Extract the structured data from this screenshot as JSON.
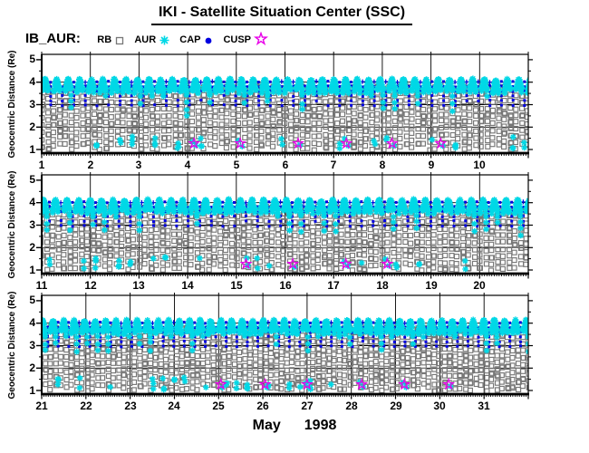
{
  "window_title": "IKI - Satellite Situation Center (SSC)",
  "chart_data": {
    "type": "scatter",
    "title": "IKI - Satellite Situation Center (SSC)",
    "dataset_label": "IB_AUR:",
    "ylabel": "Geocentric Distance (Re)",
    "month_label": "May",
    "year_label": "1998",
    "ylim": [
      1,
      5
    ],
    "yticks": [
      "1",
      "2",
      "3",
      "4",
      "5"
    ],
    "y_minor_ticks": [
      1.5,
      2.5,
      3.5,
      4.5
    ],
    "y_gridlines": [
      2,
      3,
      4
    ],
    "x_minor_tick_step_days": 0.05,
    "panels": [
      {
        "day_span": [
          1,
          11
        ],
        "tick_labels": [
          "1",
          "2",
          "3",
          "4",
          "5",
          "6",
          "7",
          "8",
          "9",
          "10"
        ]
      },
      {
        "day_span": [
          11,
          21
        ],
        "tick_labels": [
          "11",
          "12",
          "13",
          "14",
          "15",
          "16",
          "17",
          "18",
          "19",
          "20"
        ]
      },
      {
        "day_span": [
          21,
          32
        ],
        "tick_labels": [
          "21",
          "22",
          "23",
          "24",
          "25",
          "26",
          "27",
          "28",
          "29",
          "30",
          "31"
        ]
      }
    ],
    "orbit_model": {
      "description": "Auroral-probe ephemeris traces, ~5.7 h orbital period, ~4.2 orbits per day",
      "period_days": 0.2375,
      "perigee_re": 1.05,
      "apogee_re": 4.12,
      "first_apogee_day_fraction": 0.07
    },
    "series": [
      {
        "name": "RB",
        "marker": "open-square",
        "color": "#777777",
        "region": "radiation belts: orbit legs from 1.0 to 3.9 Re, square every ~0.26 Re"
      },
      {
        "name": "AUR",
        "marker": "asterisk",
        "color": "#00D8E6",
        "region": "auroral oval: dense apogee caps 3.6-4.16 Re, descending tails to ~2.5 Re, sporadic low passes 1.05-1.6 Re"
      },
      {
        "name": "CAP",
        "marker": "filled-circle",
        "color": "#0000E0",
        "region": "polar cap: dotted vertical segments 2.95-4.03 Re between apogee caps"
      },
      {
        "name": "CUSP",
        "marker": "open-star",
        "color": "#E800E8",
        "region": "cusp crossings near perigee",
        "crossings_day_of_may": [
          4.13,
          5.08,
          6.27,
          7.26,
          8.2,
          9.2,
          15.2,
          16.16,
          17.25,
          18.1,
          25.05,
          26.05,
          27.0,
          28.23,
          29.2,
          30.2
        ],
        "crossing_r_re": 1.27
      }
    ]
  }
}
